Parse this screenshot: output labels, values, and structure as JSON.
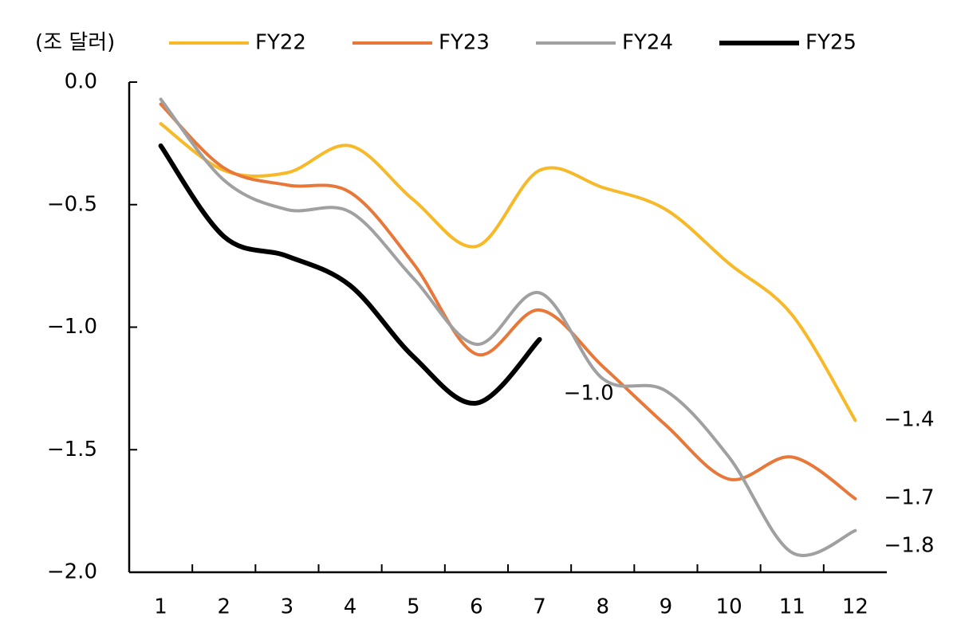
{
  "chart_data": {
    "type": "line",
    "unit_label": "(조 달러)",
    "categories": [
      "1",
      "2",
      "3",
      "4",
      "5",
      "6",
      "7",
      "8",
      "9",
      "10",
      "11",
      "12"
    ],
    "series": [
      {
        "name": "FY22",
        "color": "#f7b928",
        "values": [
          -0.17,
          -0.36,
          -0.37,
          -0.26,
          -0.48,
          -0.67,
          -0.36,
          -0.43,
          -0.52,
          -0.74,
          -0.95,
          -1.38
        ],
        "value_labels": [
          null,
          null,
          null,
          null,
          null,
          null,
          null,
          null,
          null,
          null,
          null,
          "−1.4"
        ]
      },
      {
        "name": "FY23",
        "color": "#e8783a",
        "values": [
          -0.09,
          -0.35,
          -0.42,
          -0.45,
          -0.74,
          -1.11,
          -0.93,
          -1.16,
          -1.4,
          -1.62,
          -1.53,
          -1.7
        ],
        "value_labels": [
          null,
          null,
          null,
          null,
          null,
          null,
          null,
          null,
          null,
          null,
          null,
          "−1.7"
        ]
      },
      {
        "name": "FY24",
        "color": "#a0a0a0",
        "values": [
          -0.07,
          -0.4,
          -0.52,
          -0.53,
          -0.8,
          -1.07,
          -0.86,
          -1.21,
          -1.26,
          -1.53,
          -1.92,
          -1.83
        ],
        "value_labels": [
          null,
          null,
          null,
          null,
          null,
          null,
          null,
          null,
          null,
          null,
          null,
          "−1.8"
        ]
      },
      {
        "name": "FY25",
        "color": "#000000",
        "values": [
          -0.26,
          -0.63,
          -0.71,
          -0.83,
          -1.12,
          -1.31,
          -1.05,
          null,
          null,
          null,
          null,
          null
        ],
        "value_labels": [
          null,
          null,
          null,
          null,
          null,
          null,
          "−1.0",
          null,
          null,
          null,
          null,
          null
        ]
      }
    ],
    "ylim": [
      -2.0,
      0.0
    ],
    "yticks": [
      {
        "value": -2.0,
        "label": "−2.0"
      },
      {
        "value": -1.5,
        "label": "−1.5"
      },
      {
        "value": -1.0,
        "label": "−1.0"
      },
      {
        "value": -0.5,
        "label": "−0.5"
      },
      {
        "value": 0.0,
        "label": "0.0"
      }
    ],
    "grid": false
  }
}
